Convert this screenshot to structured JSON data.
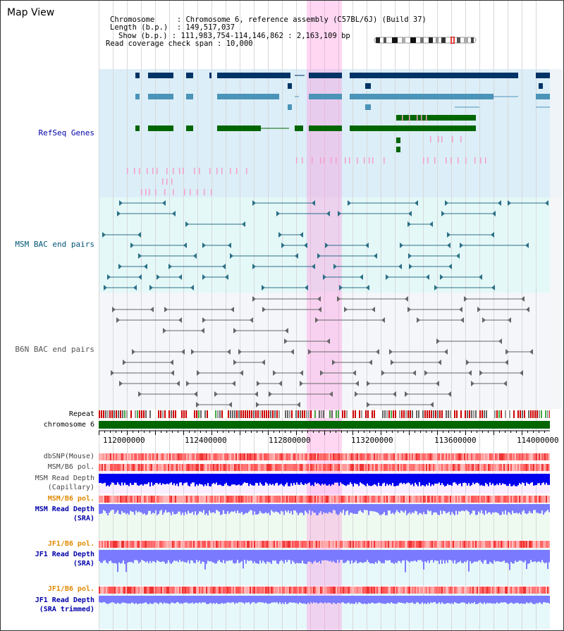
{
  "title": "Map View",
  "info": {
    "chromosome_label": "Chromosome",
    "chromosome_value": "Chromosome 6, reference assembly (C57BL/6J) (Build 37)",
    "length_label": "Length (b.p.)",
    "length_value": "149,517,037",
    "show_label": "Show (b.p.)",
    "show_value": "111,983,754-114,146,862 : 2,163,109 bp",
    "coverage_label": "Read coverage check span",
    "coverage_value": "10,000"
  },
  "tracks": {
    "refseq": "RefSeq Genes",
    "msm_bac": "MSM BAC end pairs",
    "b6n_bac": "B6N BAC end pairs",
    "repeat": "Repeat",
    "chromosome": "chromosome 6",
    "dbsnp": "dbSNP(Mouse)",
    "msm_b6_pol_1": "MSM/B6 pol.",
    "msm_depth_cap_1": "MSM Read Depth",
    "msm_depth_cap_2": "(Capillary)",
    "msm_b6_pol_2": "MSM/B6 pol.",
    "msm_depth_sra_1": "MSM Read Depth",
    "msm_depth_sra_2": "(SRA)",
    "jf1_b6_pol_1": "JF1/B6 pol.",
    "jf1_depth_sra_1": "JF1 Read Depth",
    "jf1_depth_sra_2": "(SRA)",
    "jf1_b6_pol_2": "JF1/B6 pol.",
    "jf1_depth_trim_1": "JF1 Read Depth",
    "jf1_depth_trim_2": "(SRA trimmed)"
  },
  "axis": {
    "ticks": [
      "112000000",
      "112400000",
      "112800000",
      "113200000",
      "113600000",
      "114000000"
    ]
  },
  "colors": {
    "refseq_bg": "#dceef8",
    "msm_bg": "#e4f8f8",
    "b6n_bg": "#f4f6fa",
    "refseq_dark": "#003366",
    "refseq_mid": "#4b94b8",
    "refseq_green": "#006600",
    "msm_line": "#2b6f86",
    "b6n_line": "#666666",
    "highlight": "#ff8cdc",
    "chrom_green": "#006600",
    "depth_blue": "#0000ee",
    "depth_light": "#7a7aff",
    "pol_red": "#ff3333",
    "label_orange": "#e08a00",
    "label_blue": "#0000aa"
  }
}
